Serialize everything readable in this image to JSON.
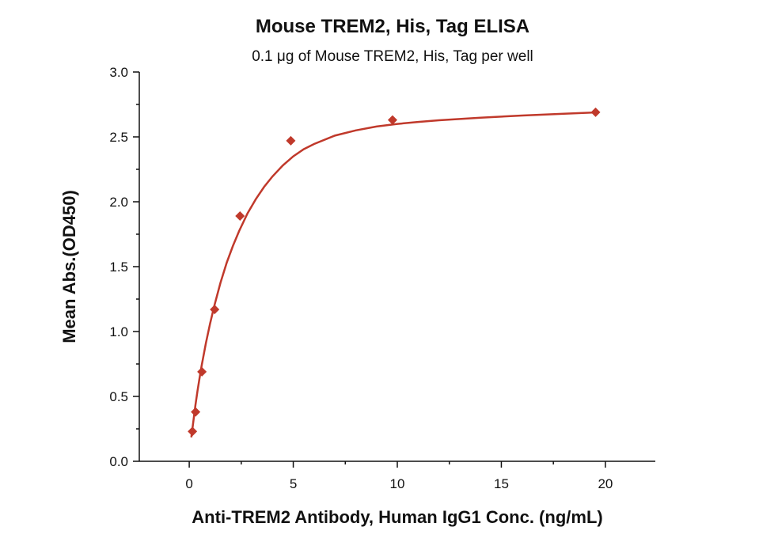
{
  "chart_data": {
    "type": "scatter",
    "title": "Mouse TREM2, His, Tag ELISA",
    "subtitle": "0.1 μg of Mouse TREM2, His, Tag per well",
    "xlabel": "Anti-TREM2 Antibody, Human IgG1 Conc. (ng/mL)",
    "ylabel": "Mean Abs.(OD450)",
    "xlim": [
      -2.4,
      22.4
    ],
    "ylim": [
      0,
      3.0
    ],
    "x_ticks": [
      0,
      5,
      10,
      15,
      20
    ],
    "x_tick_labels": [
      "0",
      "5",
      "10",
      "15",
      "20"
    ],
    "y_ticks": [
      0,
      0.5,
      1.0,
      1.5,
      2.0,
      2.5,
      3.0
    ],
    "y_tick_labels": [
      "0.0",
      "0.5",
      "1.0",
      "1.5",
      "2.0",
      "2.5",
      "3.0"
    ],
    "grid": false,
    "series": [
      {
        "color": "#c0392b",
        "marker": "diamond",
        "x": [
          0.153,
          0.305,
          0.61,
          1.22,
          2.44,
          4.88,
          9.77,
          19.53
        ],
        "y": [
          0.23,
          0.38,
          0.69,
          1.17,
          1.89,
          2.47,
          2.63,
          2.69
        ]
      }
    ],
    "fit_curve": {
      "color": "#c0392b",
      "x": [
        0.1,
        0.2,
        0.3,
        0.4,
        0.5,
        0.6,
        0.8,
        1.0,
        1.2,
        1.5,
        1.8,
        2.1,
        2.4,
        2.8,
        3.2,
        3.6,
        4.0,
        4.5,
        5.0,
        5.5,
        6.0,
        7.0,
        8.0,
        9.0,
        10.0,
        11.0,
        12.0,
        14.0,
        16.0,
        18.0,
        19.5
      ],
      "y": [
        0.185,
        0.31,
        0.435,
        0.545,
        0.645,
        0.74,
        0.91,
        1.06,
        1.195,
        1.375,
        1.53,
        1.66,
        1.775,
        1.91,
        2.02,
        2.115,
        2.195,
        2.28,
        2.35,
        2.405,
        2.445,
        2.51,
        2.55,
        2.58,
        2.6,
        2.615,
        2.628,
        2.648,
        2.665,
        2.678,
        2.688
      ]
    }
  }
}
